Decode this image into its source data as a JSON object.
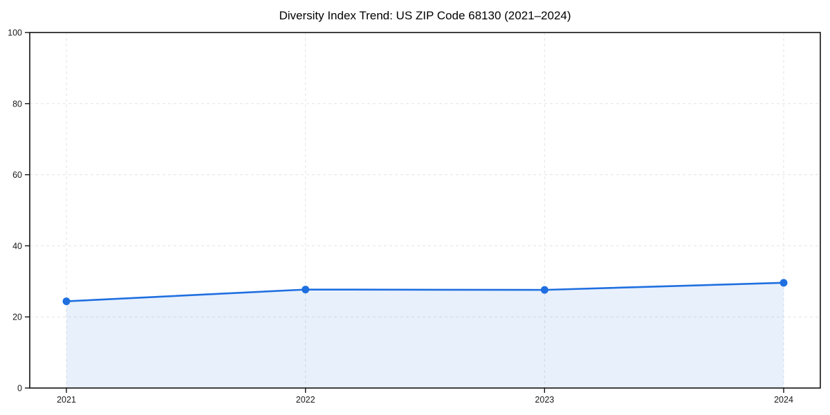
{
  "chart_data": {
    "type": "line",
    "title": "Diversity Index Trend: US ZIP Code 68130 (2021–2024)",
    "x": [
      "2021",
      "2022",
      "2023",
      "2024"
    ],
    "series": [
      {
        "name": "Diversity Index",
        "values": [
          24.4,
          27.7,
          27.6,
          29.6
        ]
      }
    ],
    "xlabel": "",
    "ylabel": "",
    "ylim": [
      0,
      100
    ],
    "yticks": [
      0,
      20,
      40,
      60,
      80,
      100
    ],
    "grid": {
      "enabled": true,
      "style": "dashed",
      "axes": "both"
    },
    "legend": "none",
    "area_fill": true,
    "markers": "circle",
    "colors": {
      "line": "#1f6fe0",
      "marker": "#1f6fe0",
      "area_fill": "rgba(31,111,224,0.10)",
      "grid": "#e3e3e3",
      "spine": "#111111",
      "tick_text": "#1a1a1a",
      "background": "#ffffff"
    }
  }
}
